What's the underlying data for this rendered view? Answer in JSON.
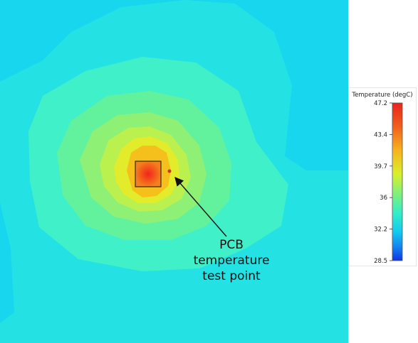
{
  "legend": {
    "title": "Temperature (degC)",
    "ticks": [
      "47.2",
      "43.4",
      "39.7",
      "36",
      "32.2",
      "28.5"
    ],
    "min": 28.5,
    "max": 47.2
  },
  "annotation": {
    "line1": "PCB",
    "line2": "temperature",
    "line3": "test point"
  },
  "colors": {
    "background": "#17d9ef",
    "hot": "#e8261c",
    "marker": "#c0392b"
  }
}
